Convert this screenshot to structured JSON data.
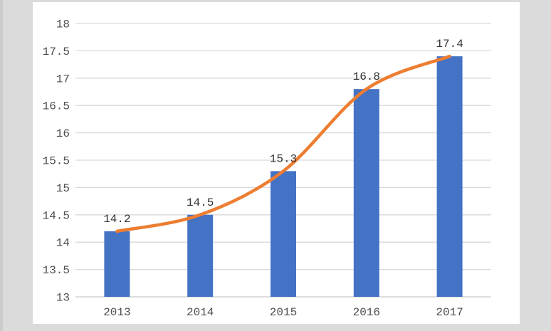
{
  "window": {
    "background_color": "#dbdbdb",
    "panel_background_color": "#ffffff"
  },
  "chart_data": {
    "type": "bar",
    "title": "",
    "xlabel": "",
    "ylabel": "",
    "categories": [
      "2013",
      "2014",
      "2015",
      "2016",
      "2017"
    ],
    "series": [
      {
        "name": "bars",
        "type": "bar",
        "values": [
          14.2,
          14.5,
          15.3,
          16.8,
          17.4
        ],
        "color": "#4472C4"
      },
      {
        "name": "trend-line",
        "type": "line",
        "smooth": true,
        "values": [
          14.2,
          14.5,
          15.3,
          16.8,
          17.4
        ],
        "color": "#ED7D31"
      }
    ],
    "data_labels": [
      "14.2",
      "14.5",
      "15.3",
      "16.8",
      "17.4"
    ],
    "ylim": [
      13,
      18
    ],
    "ytick_step": 0.5,
    "ytick_labels": [
      "13",
      "13.5",
      "14",
      "14.5",
      "15",
      "15.5",
      "16",
      "16.5",
      "17",
      "17.5",
      "18"
    ],
    "grid": true,
    "legend_position": "none",
    "gridline_color": "#d9d9d9",
    "axis_line_color": "#c9c9c9",
    "tick_label_color": "#4d4d4d",
    "data_label_color": "#333333"
  }
}
